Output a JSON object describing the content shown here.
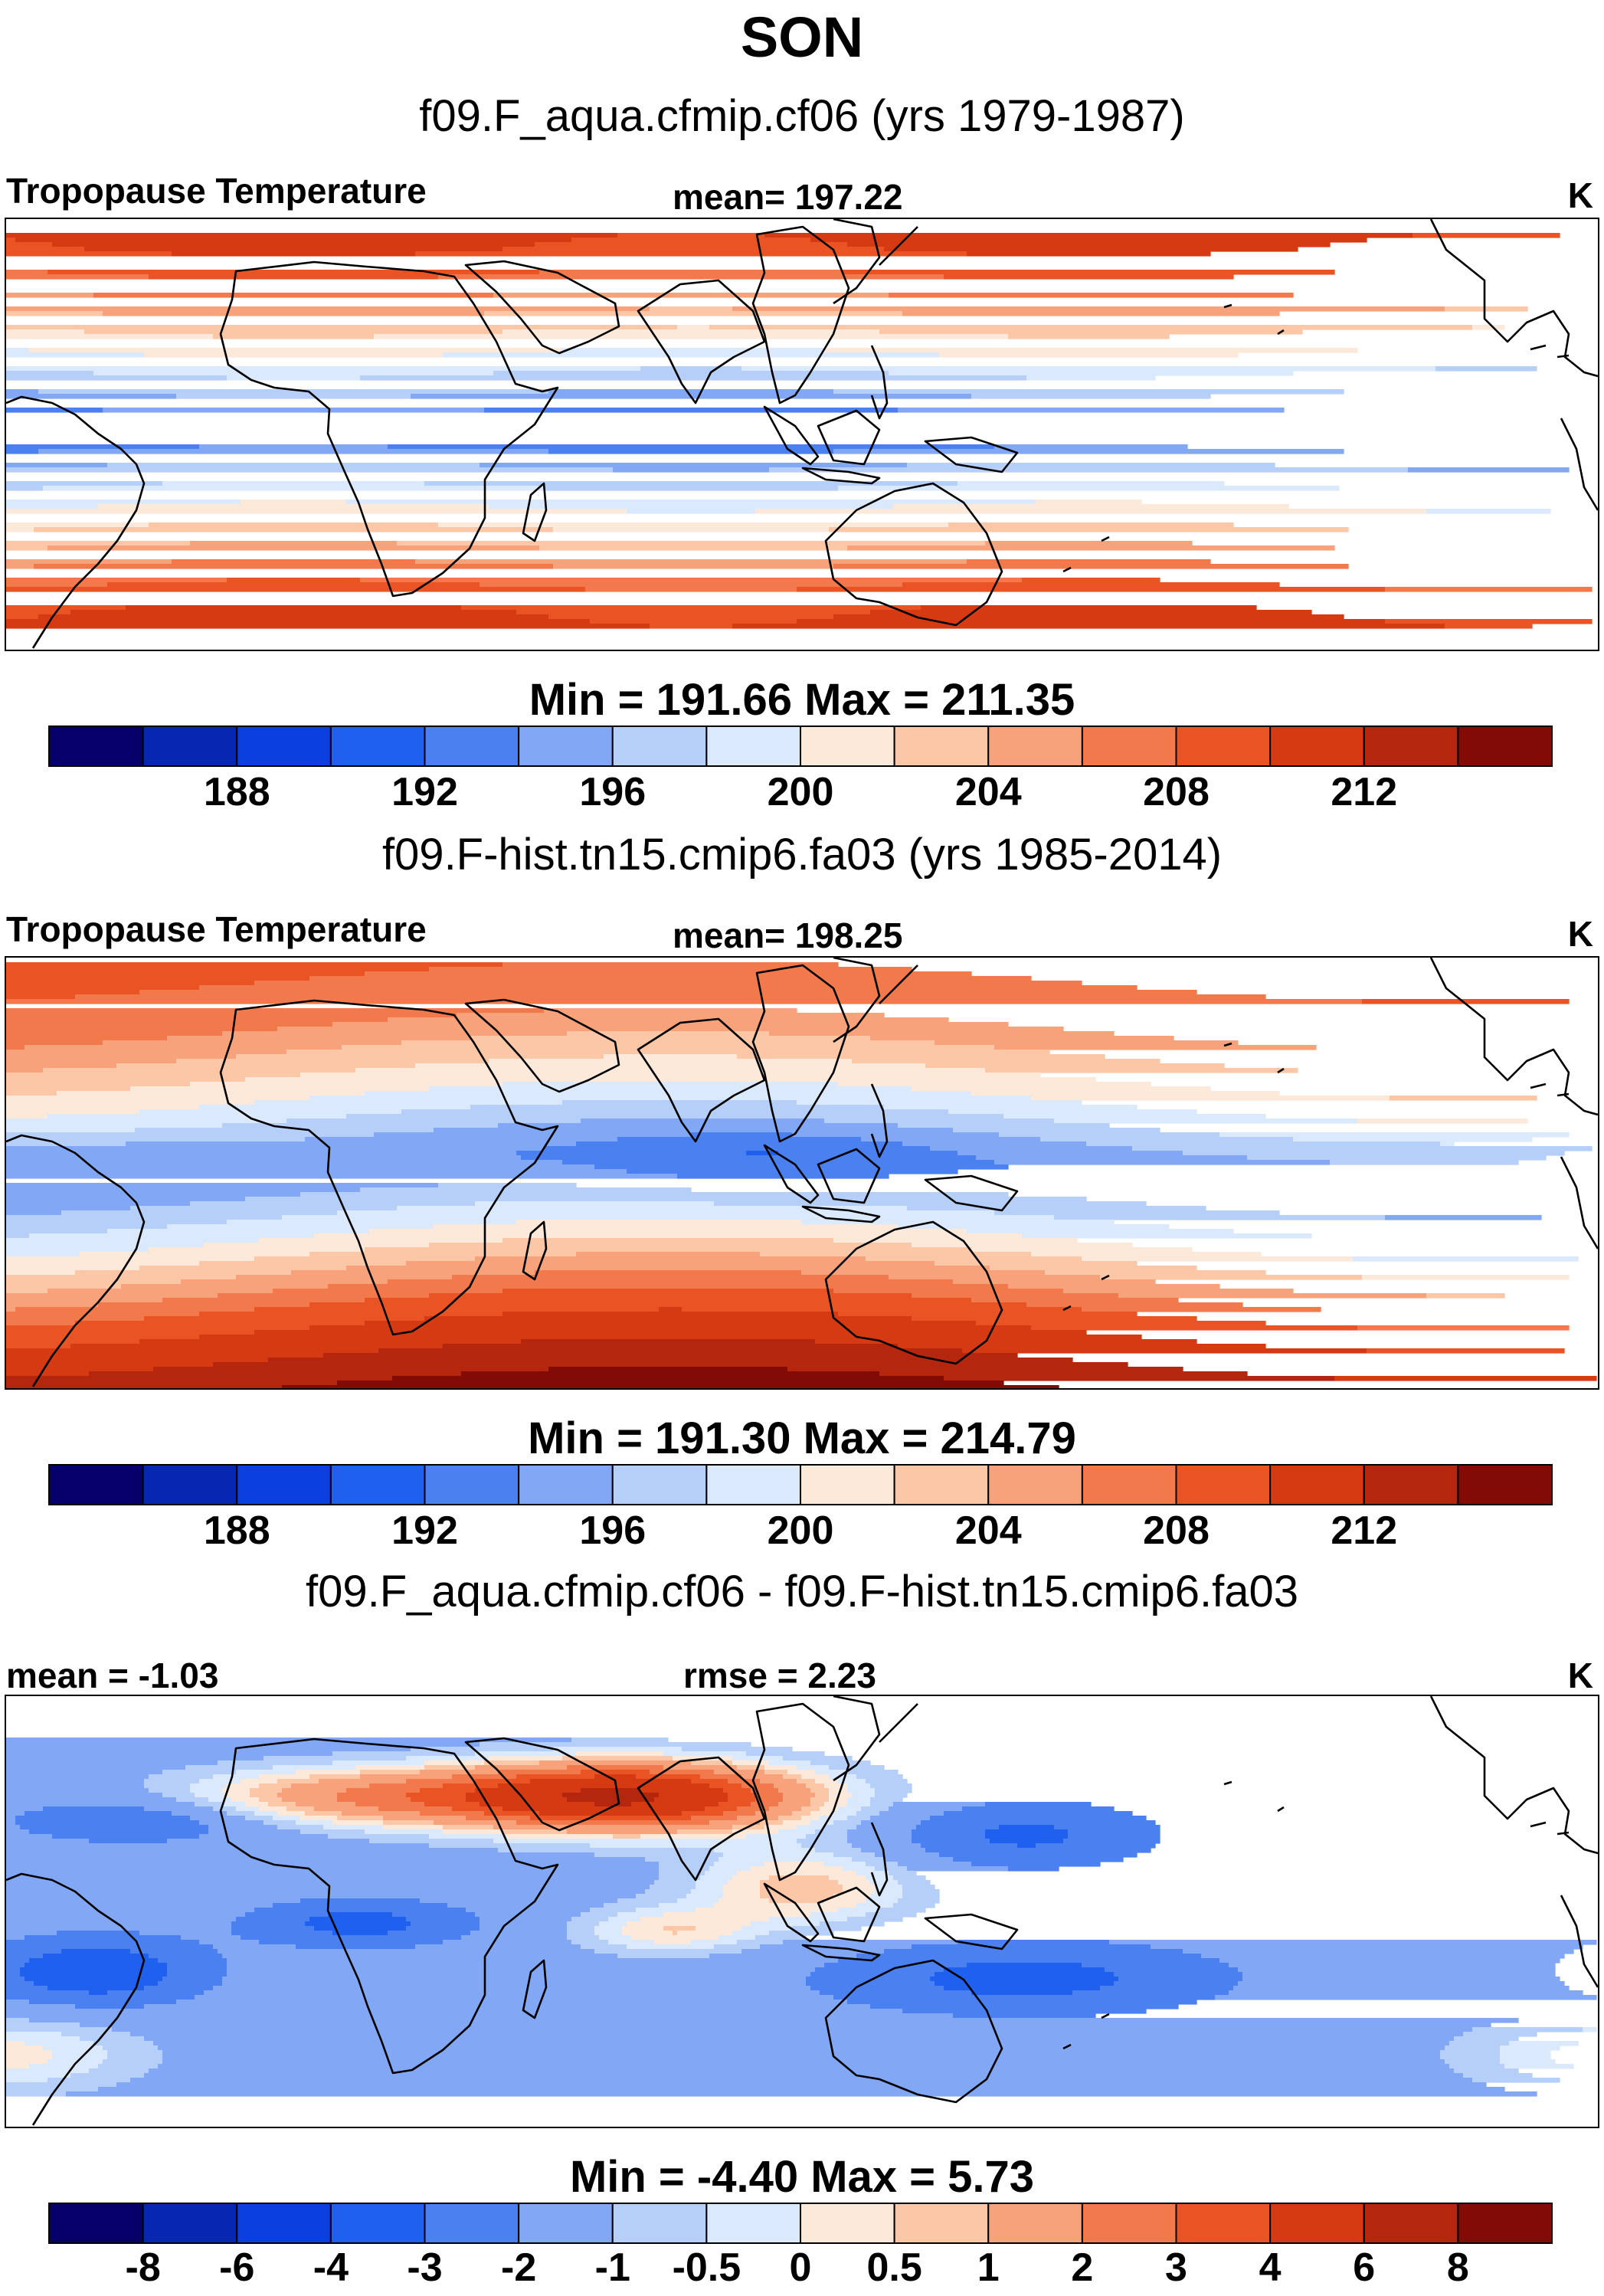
{
  "figure": {
    "title": "SON",
    "panels": [
      {
        "subtitle": "f09.F_aqua.cfmip.cf06 (yrs 1979-1987)",
        "left_label": "Tropopause Temperature",
        "center_label": "mean= 197.22",
        "units": "K",
        "minmax": "Min = 191.66 Max = 211.35"
      },
      {
        "subtitle": "f09.F-hist.tn15.cmip6.fa03 (yrs 1985-2014)",
        "left_label": "Tropopause Temperature",
        "center_label": "mean= 198.25",
        "units": "K",
        "minmax": "Min = 191.30 Max = 214.79"
      },
      {
        "subtitle": "f09.F_aqua.cfmip.cf06 - f09.F-hist.tn15.cmip6.fa03",
        "left_label": "mean =  -1.03",
        "center_label": "rmse =   2.23",
        "units": "K",
        "minmax": "Min =  -4.40 Max =    5.73"
      }
    ]
  },
  "chart_data": [
    {
      "type": "heatmap",
      "title": "Tropopause Temperature",
      "subtitle": "f09.F_aqua.cfmip.cf06 (yrs 1979-1987)",
      "units": "K",
      "mean": 197.22,
      "min": 191.66,
      "max": 211.35,
      "colorbar_levels": [
        186,
        188,
        190,
        192,
        194,
        196,
        198,
        200,
        202,
        204,
        206,
        208,
        210,
        212,
        214
      ],
      "colorbar_tick_labels": [
        "188",
        "192",
        "196",
        "200",
        "204",
        "208",
        "212"
      ],
      "colorbar_colors": [
        "#08006a",
        "#0627b2",
        "#0c3fe0",
        "#2060ee",
        "#4a80ef",
        "#82a8f5",
        "#b6cff9",
        "#dbe9fd",
        "#fde9d9",
        "#fbc7a6",
        "#f7a27a",
        "#f2794c",
        "#ea5324",
        "#d63a12",
        "#b4260d",
        "#830b05"
      ],
      "zonal_profile_lat": [
        90,
        75,
        60,
        45,
        30,
        15,
        5,
        0,
        -5,
        -15,
        -30,
        -45,
        -60,
        -75,
        -90
      ],
      "zonal_profile_value": [
        211,
        210,
        207,
        203,
        199.5,
        196,
        193,
        192.5,
        193,
        196,
        199.5,
        203,
        207,
        210,
        211
      ]
    },
    {
      "type": "heatmap",
      "title": "Tropopause Temperature",
      "subtitle": "f09.F-hist.tn15.cmip6.fa03 (yrs 1985-2014)",
      "units": "K",
      "mean": 198.25,
      "min": 191.3,
      "max": 214.79,
      "colorbar_levels": [
        186,
        188,
        190,
        192,
        194,
        196,
        198,
        200,
        202,
        204,
        206,
        208,
        210,
        212,
        214
      ],
      "colorbar_tick_labels": [
        "188",
        "192",
        "196",
        "200",
        "204",
        "208",
        "212"
      ],
      "colorbar_colors": [
        "#08006a",
        "#0627b2",
        "#0c3fe0",
        "#2060ee",
        "#4a80ef",
        "#82a8f5",
        "#b6cff9",
        "#dbe9fd",
        "#fde9d9",
        "#fbc7a6",
        "#f7a27a",
        "#f2794c",
        "#ea5324",
        "#d63a12",
        "#b4260d",
        "#830b05"
      ],
      "minimum_location": "western Pacific warm pool",
      "zonal_profile_lat": [
        90,
        60,
        30,
        10,
        0,
        -10,
        -30,
        -60,
        -90
      ],
      "zonal_profile_value": [
        209,
        206,
        200,
        195.5,
        194.5,
        196,
        200.5,
        209,
        214
      ]
    },
    {
      "type": "heatmap",
      "title": "f09.F_aqua.cfmip.cf06 - f09.F-hist.tn15.cmip6.fa03",
      "units": "K",
      "mean": -1.03,
      "rmse": 2.23,
      "min": -4.4,
      "max": 5.73,
      "colorbar_levels": [
        -8,
        -6,
        -4,
        -3,
        -2,
        -1,
        -0.5,
        0,
        0.5,
        1,
        2,
        3,
        4,
        6,
        8
      ],
      "colorbar_tick_labels": [
        "-8",
        "-6",
        "-4",
        "-3",
        "-2",
        "-1",
        "-0.5",
        "0",
        "0.5",
        "1",
        "2",
        "3",
        "4",
        "6",
        "8"
      ],
      "colorbar_colors": [
        "#08006a",
        "#0627b2",
        "#0c3fe0",
        "#2060ee",
        "#4a80ef",
        "#82a8f5",
        "#b6cff9",
        "#dbe9fd",
        "#fde9d9",
        "#fbc7a6",
        "#f7a27a",
        "#f2794c",
        "#ea5324",
        "#d63a12",
        "#b4260d",
        "#830b05"
      ],
      "positive_region": "East Asia / northern mid-latitudes",
      "negative_region": "South Atlantic, southern Indian Ocean and South Pacific"
    }
  ]
}
